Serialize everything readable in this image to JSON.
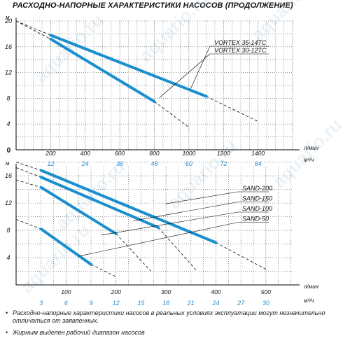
{
  "title": "РАСХОДНО-НАПОРНЫЕ ХАРАКТЕРИСТИКИ НАСОСОВ (ПРОДОЛЖЕНИЕ)",
  "watermark": "aquario.ru",
  "notes": [
    "Расходно-напорные характеристики насосов в реальных условиях эксплуатации могут незначительно отличаться от заявленных.",
    "Жирным выделен рабочий диапазон насосов"
  ],
  "chart_data": [
    {
      "type": "line",
      "xlabel": "л/мин",
      "x2label": "м³/ч",
      "ylabel": "м",
      "xlim": [
        0,
        1600
      ],
      "ylim": [
        0,
        20
      ],
      "xticks": [
        200,
        400,
        600,
        800,
        1000,
        1200,
        1400
      ],
      "x2ticks": [
        12,
        24,
        36,
        48,
        60,
        72,
        84
      ],
      "yticks": [
        0,
        4,
        8,
        12,
        16,
        20
      ],
      "grid": true,
      "series": [
        {
          "name": "VORTEX 35-14TC",
          "dashed_start": [
            [
              0,
              20
            ],
            [
              200,
              17.8
            ]
          ],
          "bold": [
            [
              200,
              17.8
            ],
            [
              1100,
              8.3
            ]
          ],
          "dashed_end": [
            [
              1100,
              8.3
            ],
            [
              1400,
              4.4
            ]
          ],
          "label_anchor": [
            1010,
            9.5
          ]
        },
        {
          "name": "VORTEX 30-12TC",
          "dashed_start": [
            [
              0,
              20
            ],
            [
              200,
              17.2
            ]
          ],
          "bold": [
            [
              200,
              17.2
            ],
            [
              800,
              7.5
            ]
          ],
          "dashed_end": [
            [
              800,
              7.5
            ],
            [
              1000,
              3.5
            ]
          ],
          "label_anchor": [
            830,
            8.1
          ]
        }
      ]
    },
    {
      "type": "line",
      "xlabel": "л/мин",
      "x2label": "м³/ч",
      "ylabel": "м",
      "xlim": [
        0,
        550
      ],
      "ylim": [
        0,
        18
      ],
      "xticks": [
        100,
        200,
        300,
        400,
        500
      ],
      "x2ticks": [
        3,
        6,
        9,
        12,
        15,
        18,
        21,
        24,
        27,
        30
      ],
      "yticks": [
        4,
        8,
        12,
        16
      ],
      "grid": true,
      "series": [
        {
          "name": "SAND-200",
          "dashed_start": [
            [
              0,
              18
            ],
            [
              50,
              16.8
            ]
          ],
          "bold": [
            [
              50,
              16.8
            ],
            [
              400,
              6.2
            ]
          ],
          "dashed_end": [
            [
              400,
              6.2
            ],
            [
              500,
              2.3
            ]
          ],
          "label_anchor": [
            300,
            11.9
          ]
        },
        {
          "name": "SAND-150",
          "dashed_start": [
            [
              0,
              17.2
            ],
            [
              50,
              15.8
            ]
          ],
          "bold": [
            [
              50,
              15.8
            ],
            [
              285,
              8.4
            ]
          ],
          "dashed_end": [
            [
              285,
              8.4
            ],
            [
              360,
              2.2
            ]
          ],
          "label_anchor": [
            235,
            9.4
          ]
        },
        {
          "name": "SAND-100",
          "dashed_start": [
            [
              0,
              15.4
            ],
            [
              50,
              14.3
            ]
          ],
          "bold": [
            [
              50,
              14.3
            ],
            [
              200,
              7.5
            ]
          ],
          "dashed_end": [
            [
              200,
              7.5
            ],
            [
              270,
              2.0
            ]
          ],
          "label_anchor": [
            170,
            7.3
          ]
        },
        {
          "name": "SAND-50",
          "dashed_start": [
            [
              0,
              9.6
            ],
            [
              50,
              8.2
            ]
          ],
          "bold": [
            [
              50,
              8.2
            ],
            [
              150,
              3.0
            ]
          ],
          "dashed_end": [
            [
              150,
              3.0
            ],
            [
              200,
              1.2
            ]
          ],
          "label_anchor": [
            125,
            4.2
          ]
        }
      ]
    }
  ]
}
